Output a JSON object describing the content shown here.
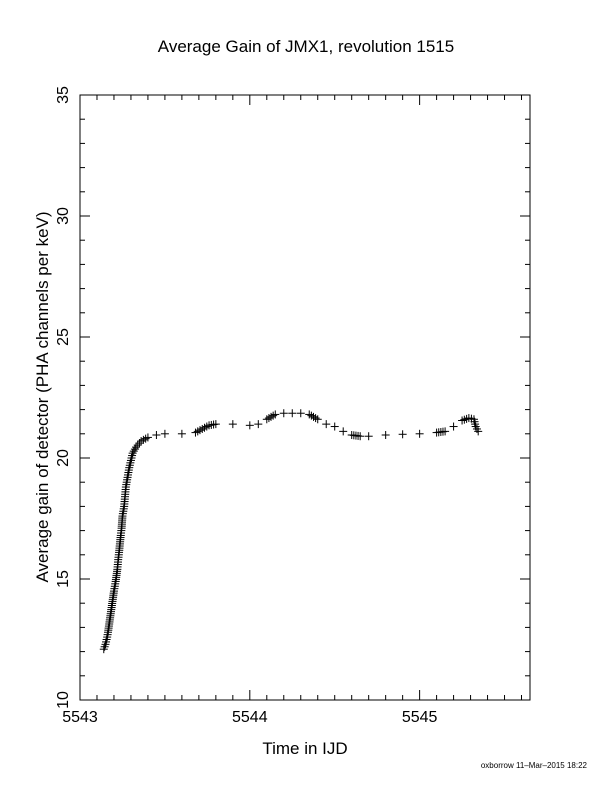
{
  "chart_data": {
    "type": "scatter",
    "title": "Average Gain of JMX1, revolution 1515",
    "xlabel": "Time in IJD",
    "ylabel": "Average gain of detector (PHA channels per keV)",
    "xlim": [
      5543,
      5545.65
    ],
    "ylim": [
      10,
      35
    ],
    "x_ticks": [
      5543,
      5544,
      5545
    ],
    "y_ticks": [
      10,
      15,
      20,
      25,
      30,
      35
    ],
    "grid": false,
    "marker": "+",
    "series": [
      {
        "points": [
          [
            5543.14,
            12.1
          ],
          [
            5543.15,
            12.3
          ],
          [
            5543.16,
            12.6
          ],
          [
            5543.165,
            12.8
          ],
          [
            5543.2,
            14.5
          ],
          [
            5543.21,
            14.9
          ],
          [
            5543.22,
            15.4
          ],
          [
            5543.225,
            15.8
          ],
          [
            5543.23,
            16.1
          ],
          [
            5543.24,
            16.8
          ],
          [
            5543.245,
            17.1
          ],
          [
            5543.25,
            17.6
          ],
          [
            5543.26,
            18.0
          ],
          [
            5543.265,
            18.4
          ],
          [
            5543.27,
            18.8
          ],
          [
            5543.28,
            19.2
          ],
          [
            5543.29,
            19.6
          ],
          [
            5543.3,
            19.9
          ],
          [
            5543.31,
            20.2
          ],
          [
            5543.33,
            20.45
          ],
          [
            5543.36,
            20.7
          ],
          [
            5543.4,
            20.85
          ],
          [
            5543.45,
            20.95
          ],
          [
            5543.5,
            21.0
          ],
          [
            5543.6,
            21.0
          ],
          [
            5543.68,
            21.05
          ],
          [
            5543.72,
            21.2
          ],
          [
            5543.76,
            21.35
          ],
          [
            5543.8,
            21.4
          ],
          [
            5543.9,
            21.4
          ],
          [
            5544.0,
            21.35
          ],
          [
            5544.05,
            21.4
          ],
          [
            5544.1,
            21.6
          ],
          [
            5544.15,
            21.8
          ],
          [
            5544.2,
            21.85
          ],
          [
            5544.25,
            21.85
          ],
          [
            5544.3,
            21.85
          ],
          [
            5544.35,
            21.8
          ],
          [
            5544.4,
            21.6
          ],
          [
            5544.45,
            21.4
          ],
          [
            5544.5,
            21.3
          ],
          [
            5544.55,
            21.1
          ],
          [
            5544.6,
            20.95
          ],
          [
            5544.65,
            20.9
          ],
          [
            5544.7,
            20.9
          ],
          [
            5544.8,
            20.95
          ],
          [
            5544.9,
            20.98
          ],
          [
            5545.0,
            21.0
          ],
          [
            5545.1,
            21.05
          ],
          [
            5545.15,
            21.1
          ],
          [
            5545.2,
            21.3
          ],
          [
            5545.25,
            21.55
          ],
          [
            5545.29,
            21.65
          ],
          [
            5545.32,
            21.6
          ],
          [
            5545.33,
            21.3
          ],
          [
            5545.345,
            21.1
          ]
        ]
      }
    ]
  },
  "footer": "oxborrow 11–Mar–2015 18:22"
}
